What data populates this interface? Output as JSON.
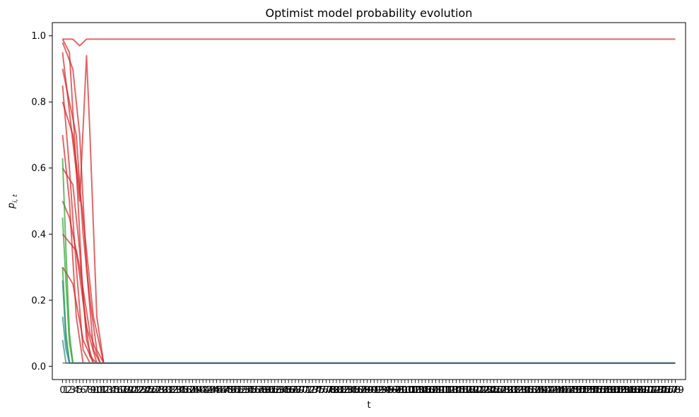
{
  "chart_data": {
    "type": "line",
    "title": "Optimist model probability evolution",
    "xlabel": "t",
    "ylabel": "p_{i,t}",
    "ylim": [
      -0.04,
      1.04
    ],
    "xlim": [
      -3,
      182
    ],
    "x_range": [
      0,
      179
    ],
    "y_ticks": [
      0.0,
      0.2,
      0.4,
      0.6,
      0.8,
      1.0
    ],
    "y_tick_labels": [
      "0.0",
      "0.2",
      "0.4",
      "0.6",
      "0.8",
      "1.0"
    ],
    "x_tick_every": 1,
    "x_tick_label_text": "0 1 2 3 ... 179 (all integer ticks, overlapping)",
    "grid": false,
    "legend": "none",
    "colors": {
      "red": "#d62728",
      "green": "#2ca02c",
      "teal": "#2a8a8a",
      "purple": "#6b5b73"
    },
    "series": [
      {
        "color": "red",
        "values_desc": "flat at 0.99",
        "x": [
          0,
          3,
          5,
          7,
          10,
          179
        ],
        "y": [
          0.99,
          0.99,
          0.97,
          0.99,
          0.99,
          0.99
        ]
      },
      {
        "color": "red",
        "x": [
          0,
          2,
          4,
          6,
          8,
          10,
          179
        ],
        "y": [
          0.99,
          0.95,
          0.6,
          0.2,
          0.03,
          0.01,
          0.01
        ]
      },
      {
        "color": "red",
        "x": [
          0,
          3,
          5,
          7,
          9,
          11,
          179
        ],
        "y": [
          0.98,
          0.9,
          0.7,
          0.3,
          0.05,
          0.01,
          0.01
        ]
      },
      {
        "color": "red",
        "x": [
          0,
          5,
          7,
          8,
          10,
          12,
          179
        ],
        "y": [
          0.95,
          0.5,
          0.94,
          0.7,
          0.15,
          0.01,
          0.01
        ]
      },
      {
        "color": "red",
        "x": [
          0,
          4,
          6,
          8,
          10,
          12,
          179
        ],
        "y": [
          0.9,
          0.7,
          0.4,
          0.2,
          0.05,
          0.01,
          0.01
        ]
      },
      {
        "color": "red",
        "x": [
          0,
          2,
          4,
          6,
          8,
          179
        ],
        "y": [
          0.85,
          0.6,
          0.3,
          0.05,
          0.01,
          0.01
        ]
      },
      {
        "color": "red",
        "x": [
          0,
          3,
          6,
          9,
          12,
          179
        ],
        "y": [
          0.8,
          0.7,
          0.45,
          0.15,
          0.01,
          0.01
        ]
      },
      {
        "color": "red",
        "x": [
          0,
          2,
          4,
          6,
          179
        ],
        "y": [
          0.7,
          0.5,
          0.15,
          0.01,
          0.01
        ]
      },
      {
        "color": "red",
        "x": [
          0,
          3,
          5,
          7,
          9,
          179
        ],
        "y": [
          0.6,
          0.55,
          0.35,
          0.08,
          0.01,
          0.01
        ]
      },
      {
        "color": "red",
        "x": [
          0,
          2,
          5,
          8,
          11,
          179
        ],
        "y": [
          0.5,
          0.45,
          0.3,
          0.1,
          0.01,
          0.01
        ]
      },
      {
        "color": "red",
        "x": [
          0,
          4,
          7,
          10,
          179
        ],
        "y": [
          0.4,
          0.35,
          0.12,
          0.01,
          0.01
        ]
      },
      {
        "color": "red",
        "x": [
          0,
          3,
          6,
          9,
          179
        ],
        "y": [
          0.3,
          0.25,
          0.08,
          0.01,
          0.01
        ]
      },
      {
        "color": "green",
        "x": [
          0,
          1,
          2,
          3,
          179
        ],
        "y": [
          0.63,
          0.35,
          0.1,
          0.01,
          0.01
        ]
      },
      {
        "color": "green",
        "x": [
          0,
          1,
          2,
          3,
          179
        ],
        "y": [
          0.45,
          0.25,
          0.07,
          0.01,
          0.01
        ]
      },
      {
        "color": "green",
        "x": [
          0,
          1,
          2,
          179
        ],
        "y": [
          0.3,
          0.1,
          0.01,
          0.01
        ]
      },
      {
        "color": "teal",
        "x": [
          0,
          1,
          2,
          179
        ],
        "y": [
          0.26,
          0.08,
          0.01,
          0.01
        ]
      },
      {
        "color": "teal",
        "x": [
          0,
          1,
          2,
          179
        ],
        "y": [
          0.15,
          0.05,
          0.01,
          0.01
        ]
      },
      {
        "color": "teal",
        "x": [
          0,
          1,
          179
        ],
        "y": [
          0.08,
          0.01,
          0.01
        ]
      },
      {
        "color": "purple",
        "x": [
          0,
          179
        ],
        "y": [
          0.01,
          0.01
        ]
      }
    ]
  }
}
